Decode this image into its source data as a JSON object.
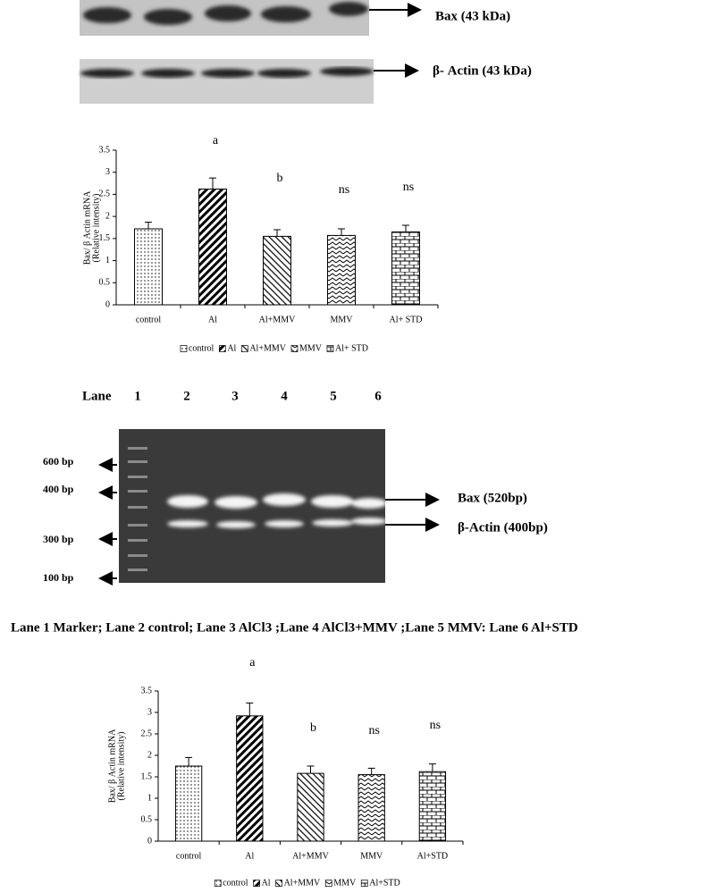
{
  "blots": {
    "bax_label": "Bax (43 kDa)",
    "actin_label": "β- Actin (43 kDa)"
  },
  "chart_data": [
    {
      "type": "bar",
      "ylabel": [
        "Bax/ β Actin mRNA",
        "(Relative intensity)"
      ],
      "categories": [
        "control",
        "Al",
        "Al+MMV",
        "MMV",
        "Al+ STD"
      ],
      "values": [
        1.72,
        2.62,
        1.55,
        1.57,
        1.65
      ],
      "errors": [
        0.15,
        0.25,
        0.15,
        0.15,
        0.15
      ],
      "annotations": [
        null,
        "a",
        "b",
        "ns",
        "ns"
      ],
      "patterns": [
        "dots",
        "thick-diagonal",
        "thin-diagonal",
        "zigzag",
        "brick"
      ],
      "color": "#000000",
      "ylim": [
        0,
        3.5
      ],
      "yticks": [
        0,
        0.5,
        1,
        1.5,
        2,
        2.5,
        3,
        3.5
      ],
      "legend": "bottom"
    },
    {
      "type": "bar",
      "ylabel": [
        "Bax/ β Actin mRNA",
        "(Relative intensity)"
      ],
      "categories": [
        "control",
        "Al",
        "Al+MMV",
        "MMV",
        "Al+STD"
      ],
      "values": [
        1.75,
        2.92,
        1.58,
        1.55,
        1.62
      ],
      "errors": [
        0.2,
        0.3,
        0.17,
        0.15,
        0.18
      ],
      "annotations": [
        null,
        "a",
        "b",
        "ns",
        "ns"
      ],
      "patterns": [
        "dots",
        "thick-diagonal",
        "thin-diagonal",
        "zigzag",
        "brick"
      ],
      "color": "#000000",
      "ylim": [
        0,
        3.5
      ],
      "yticks": [
        0,
        0.5,
        1,
        1.5,
        2,
        2.5,
        3,
        3.5
      ],
      "legend": "bottom"
    }
  ],
  "gel": {
    "lane_title": "Lane",
    "lanes": [
      "1",
      "2",
      "3",
      "4",
      "5",
      "6"
    ],
    "markers": [
      "600 bp",
      "400 bp",
      "300 bp",
      "100 bp"
    ],
    "bax_label": "Bax (520bp)",
    "actin_label": "β-Actin (400bp)",
    "caption": "Lane 1  Marker; Lane 2 control; Lane 3 AlCl3 ;Lane 4 AlCl3+MMV ;Lane 5 MMV: Lane 6  Al+STD"
  }
}
